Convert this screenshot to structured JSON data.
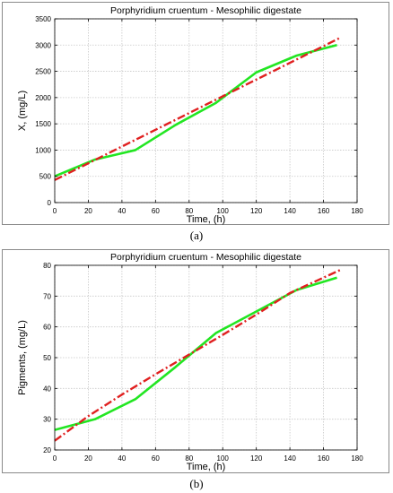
{
  "chart_data": [
    {
      "type": "line",
      "title": "Porphyridium cruentum - Mesophilic digestate",
      "xlabel": "Time, (h)",
      "ylabel": "X, (mg/L)",
      "xlim": [
        0,
        180
      ],
      "ylim": [
        0,
        3500
      ],
      "x_ticks": [
        0,
        20,
        40,
        60,
        80,
        100,
        120,
        140,
        160,
        180
      ],
      "y_ticks": [
        0,
        500,
        1000,
        1500,
        2000,
        2500,
        3000,
        3500
      ],
      "x_tick_labels": [
        "0",
        "20",
        "40",
        "60",
        "80",
        "100",
        "120",
        "140",
        "160",
        "180"
      ],
      "y_tick_labels": [
        "0",
        "500",
        "1000",
        "1500",
        "2000",
        "2500",
        "3000",
        "3500"
      ],
      "grid": true,
      "legend": "none",
      "panel_label": "(a)",
      "series": [
        {
          "style": "solid",
          "color": "#22e622",
          "points": [
            [
              0,
              500
            ],
            [
              24,
              820
            ],
            [
              48,
              1000
            ],
            [
              72,
              1480
            ],
            [
              96,
              1900
            ],
            [
              120,
              2480
            ],
            [
              144,
              2800
            ],
            [
              168,
              3000
            ]
          ]
        },
        {
          "style": "dash-dot",
          "color": "#e02020",
          "points": [
            [
              0,
              430
            ],
            [
              170,
              3140
            ]
          ]
        }
      ]
    },
    {
      "type": "line",
      "title": "Porphyridium cruentum - Mesophilic digestate",
      "xlabel": "Time, (h)",
      "ylabel": "Pigments, (mg/L)",
      "xlim": [
        0,
        180
      ],
      "ylim": [
        20,
        80
      ],
      "x_ticks": [
        0,
        20,
        40,
        60,
        80,
        100,
        120,
        140,
        160,
        180
      ],
      "y_ticks": [
        20,
        30,
        40,
        50,
        60,
        70,
        80
      ],
      "x_tick_labels": [
        "0",
        "20",
        "40",
        "60",
        "80",
        "100",
        "120",
        "140",
        "160",
        "180"
      ],
      "y_tick_labels": [
        "20",
        "30",
        "40",
        "50",
        "60",
        "70",
        "80"
      ],
      "grid": true,
      "legend": "none",
      "panel_label": "(b)",
      "series": [
        {
          "style": "solid",
          "color": "#22e622",
          "points": [
            [
              0,
              26.5
            ],
            [
              24,
              30
            ],
            [
              48,
              36.5
            ],
            [
              72,
              47
            ],
            [
              96,
              58
            ],
            [
              120,
              65
            ],
            [
              144,
              72
            ],
            [
              168,
              76
            ]
          ]
        },
        {
          "style": "dash-dot",
          "color": "#e02020",
          "points": [
            [
              0,
              23
            ],
            [
              20,
              31
            ],
            [
              40,
              38
            ],
            [
              60,
              44.6
            ],
            [
              80,
              51
            ],
            [
              100,
              57.4
            ],
            [
              120,
              64
            ],
            [
              140,
              71
            ],
            [
              170,
              78.5
            ]
          ]
        }
      ]
    }
  ]
}
